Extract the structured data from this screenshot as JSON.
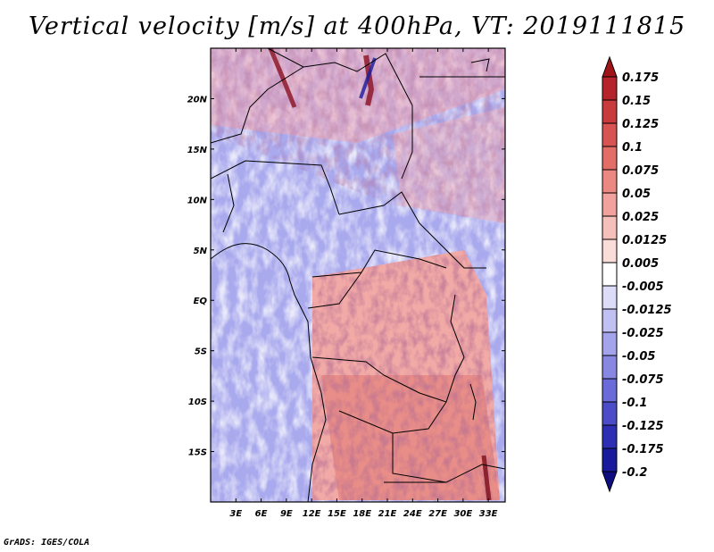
{
  "title": "Vertical velocity [m/s] at 400hPa, VT: 2019111815",
  "credit": "GrADS: IGES/COLA",
  "map": {
    "lon_range": [
      0,
      35
    ],
    "lat_range": [
      -20,
      25
    ],
    "lat_ticks": [
      {
        "value": 20,
        "label": "20N"
      },
      {
        "value": 15,
        "label": "15N"
      },
      {
        "value": 10,
        "label": "10N"
      },
      {
        "value": 5,
        "label": "5N"
      },
      {
        "value": 0,
        "label": "EQ"
      },
      {
        "value": -5,
        "label": "5S"
      },
      {
        "value": -10,
        "label": "10S"
      },
      {
        "value": -15,
        "label": "15S"
      }
    ],
    "lon_ticks": [
      {
        "value": 3,
        "label": "3E"
      },
      {
        "value": 6,
        "label": "6E"
      },
      {
        "value": 9,
        "label": "9E"
      },
      {
        "value": 12,
        "label": "12E"
      },
      {
        "value": 15,
        "label": "15E"
      },
      {
        "value": 18,
        "label": "18E"
      },
      {
        "value": 21,
        "label": "21E"
      },
      {
        "value": 24,
        "label": "24E"
      },
      {
        "value": 27,
        "label": "27E"
      },
      {
        "value": 30,
        "label": "30E"
      },
      {
        "value": 33,
        "label": "33E"
      }
    ]
  },
  "colorbar": {
    "levels": [
      "0.175",
      "0.15",
      "0.125",
      "0.1",
      "0.075",
      "0.05",
      "0.025",
      "0.0125",
      "0.005",
      "-0.005",
      "-0.0125",
      "-0.025",
      "-0.05",
      "-0.075",
      "-0.1",
      "-0.125",
      "-0.175",
      "-0.2"
    ],
    "colors": [
      "#a01418",
      "#b5242a",
      "#c83a3c",
      "#d85452",
      "#e36e68",
      "#eb8882",
      "#f1a29c",
      "#f6c0ba",
      "#fadcd8",
      "#ffffff",
      "#dcdcf8",
      "#c0c0f2",
      "#a4a4ec",
      "#8888e2",
      "#6a6ad8",
      "#4c4cc8",
      "#2e2eb4",
      "#1a1a9c",
      "#0e0e80"
    ]
  }
}
